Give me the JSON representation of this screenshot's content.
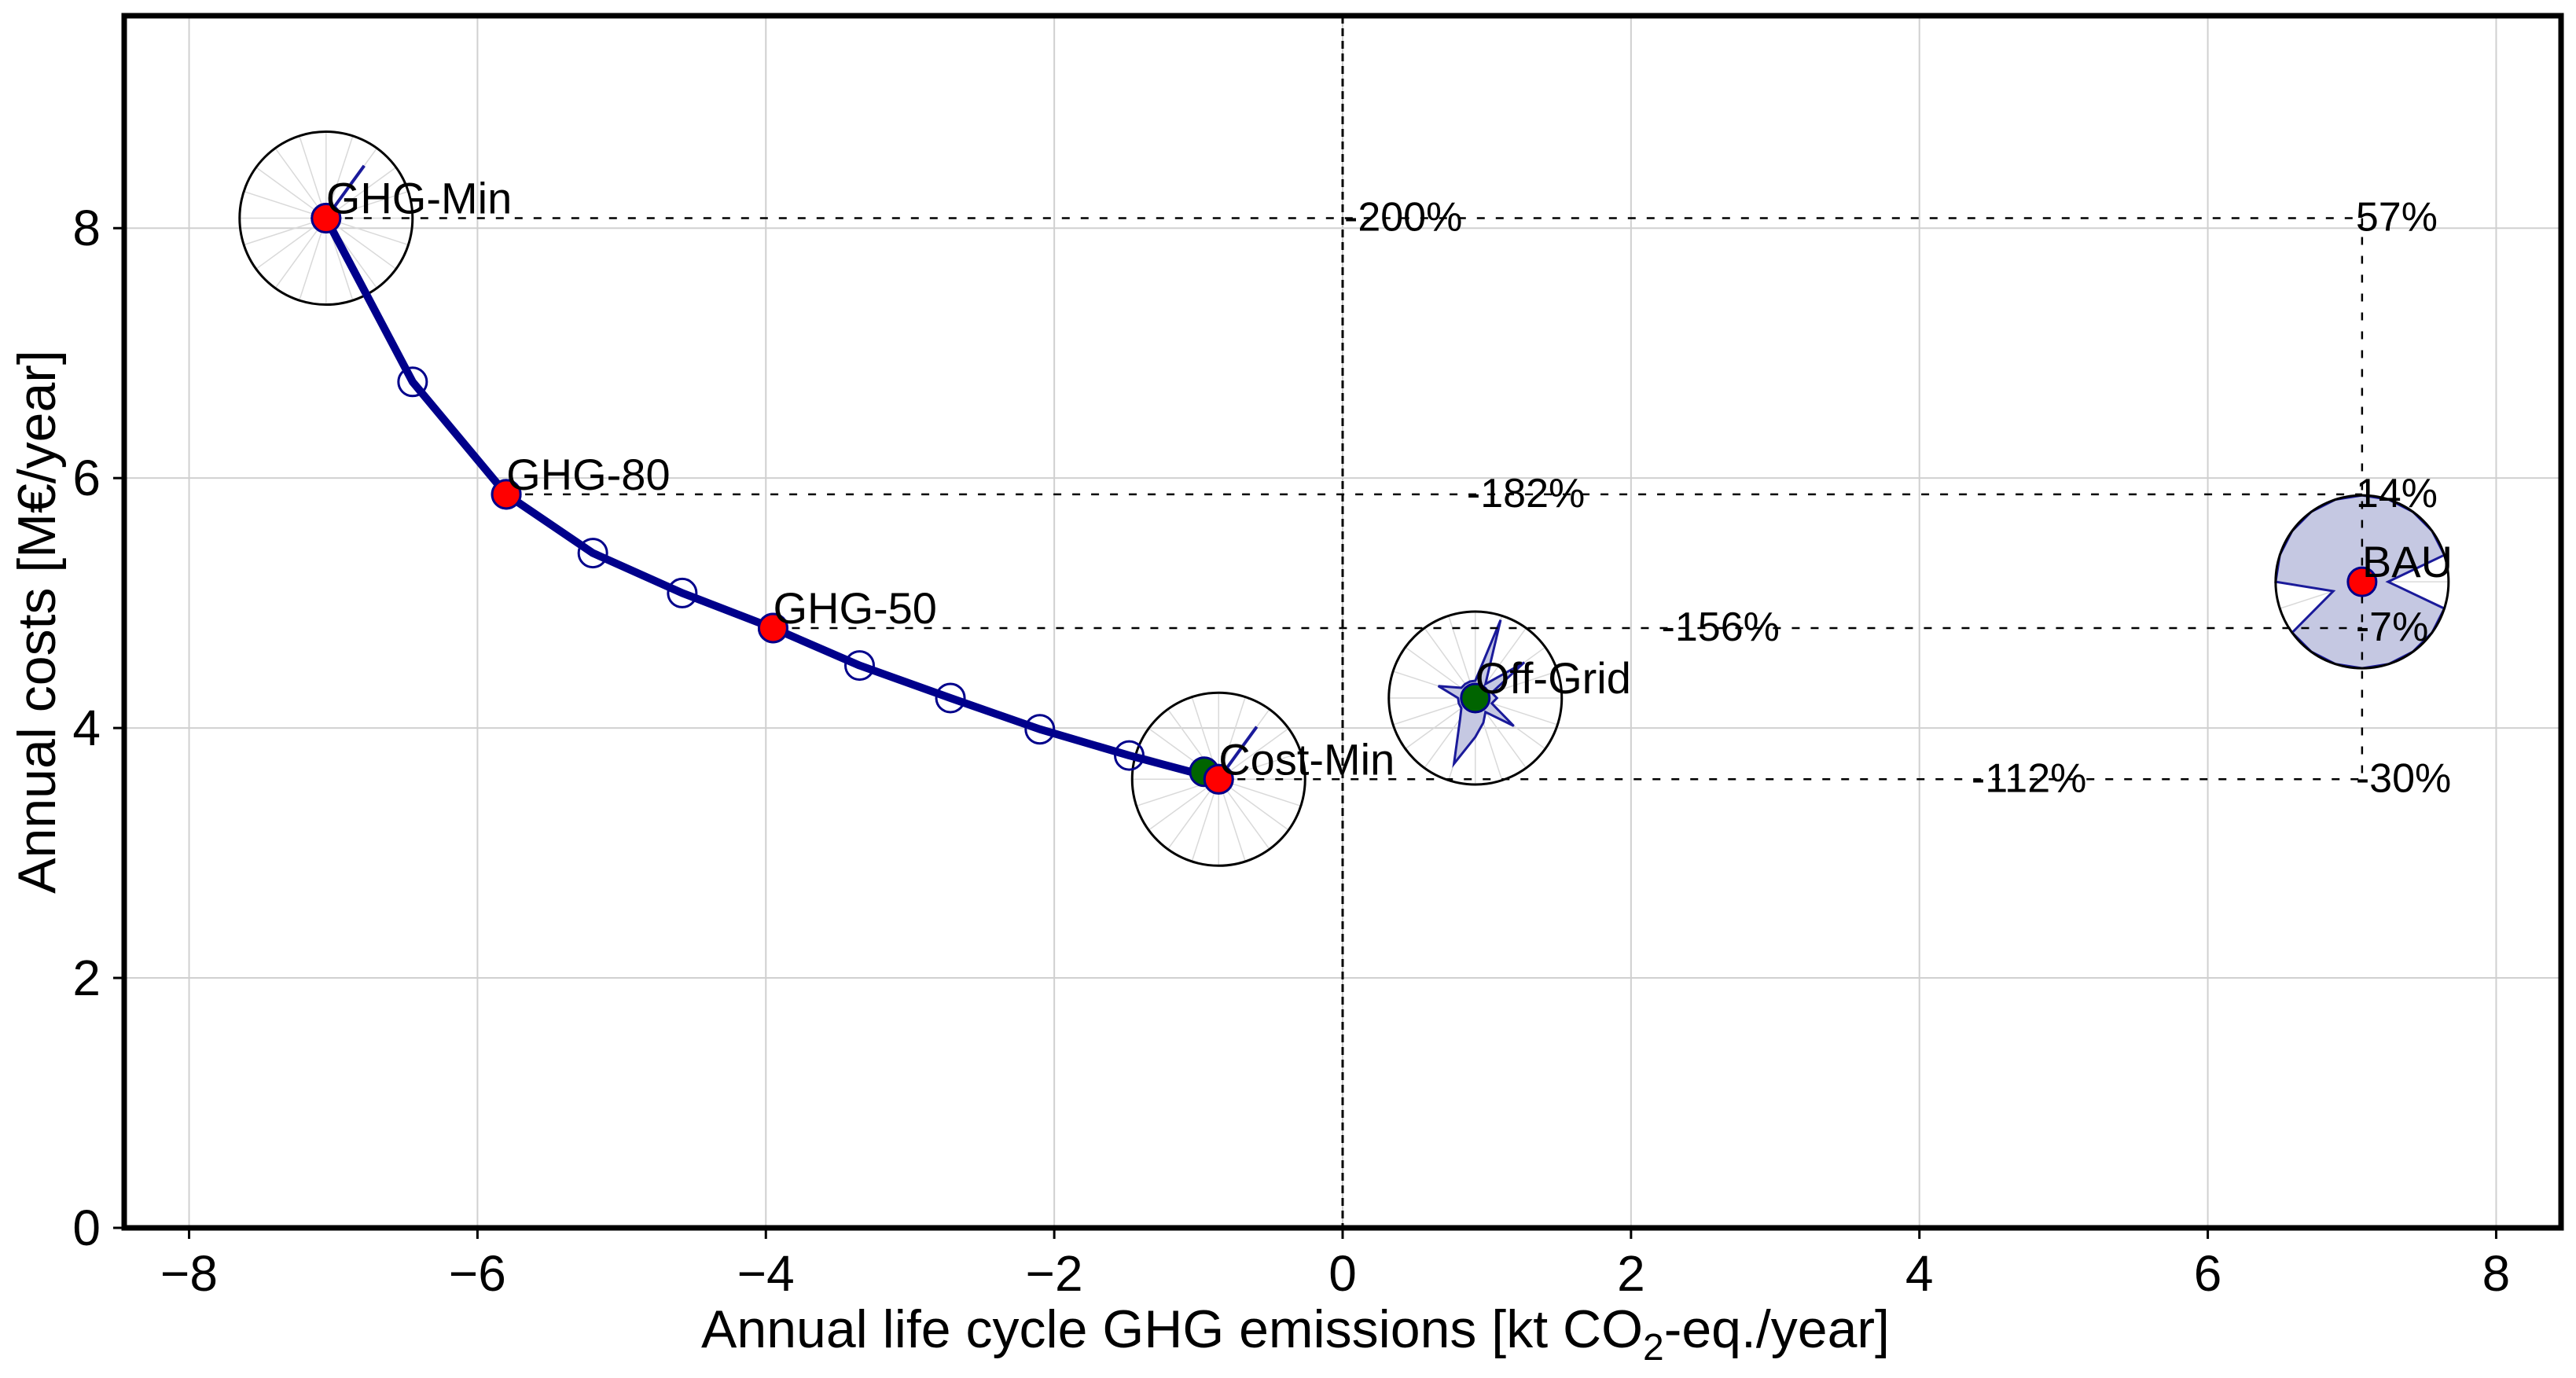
{
  "chart_data": {
    "type": "scatter",
    "title": "",
    "xlabel_parts": [
      "Annual life cycle GHG emissions [kt CO",
      "2",
      "-eq./year]"
    ],
    "ylabel": "Annual costs [M€/year]",
    "xlim": [
      -8.45,
      8.45
    ],
    "ylim": [
      0,
      9.7
    ],
    "x_ticks": [
      -8,
      -6,
      -4,
      -2,
      0,
      2,
      4,
      6,
      8
    ],
    "x_tick_labels": [
      "−8",
      "−6",
      "−4",
      "−2",
      "0",
      "2",
      "4",
      "6",
      "8"
    ],
    "y_ticks": [
      0,
      2,
      4,
      6,
      8
    ],
    "y_tick_labels": [
      "0",
      "2",
      "4",
      "6",
      "8"
    ],
    "grid": true,
    "colors": {
      "pareto": "#00008b",
      "named_point": "#ff0000",
      "offgrid_point": "#006400",
      "radar_fill": "#c5c8e2",
      "radar_line": "#1a1a9a",
      "grid": "#d0d0d0"
    },
    "pareto_front": {
      "x": [
        -7.05,
        -6.45,
        -5.8,
        -5.2,
        -4.58,
        -3.95,
        -3.35,
        -2.72,
        -2.1,
        -1.48,
        -0.86
      ],
      "y": [
        8.08,
        6.77,
        5.87,
        5.4,
        5.08,
        4.8,
        4.5,
        4.24,
        3.99,
        3.78,
        3.59
      ]
    },
    "named_points": [
      {
        "label": "GHG-Min",
        "x": -7.05,
        "y": 8.08,
        "color": "#ff0000"
      },
      {
        "label": "GHG-80",
        "x": -5.8,
        "y": 5.87,
        "color": "#ff0000"
      },
      {
        "label": "GHG-50",
        "x": -3.95,
        "y": 4.8,
        "color": "#ff0000"
      },
      {
        "label": "Cost-Min",
        "x": -0.86,
        "y": 3.59,
        "color": "#ff0000"
      },
      {
        "label": "Off-Grid",
        "x": 0.92,
        "y": 4.24,
        "color": "#006400"
      },
      {
        "label": "BAU",
        "x": 7.07,
        "y": 5.17,
        "color": "#ff0000"
      }
    ],
    "extra_point": {
      "x": -0.96,
      "y": 3.65,
      "color": "#006400"
    },
    "reference_lines": {
      "vertical_x": 0,
      "bau_x": 7.07
    },
    "relative_changes": [
      {
        "y": 8.08,
        "emissions_label": "-200%",
        "emissions_label_x": 0.0,
        "cost_label": "57%"
      },
      {
        "y": 5.87,
        "emissions_label": "-182%",
        "emissions_label_x": 0.85,
        "cost_label": "14%"
      },
      {
        "y": 4.8,
        "emissions_label": "-156%",
        "emissions_label_x": 2.2,
        "cost_label": "-7%"
      },
      {
        "y": 3.59,
        "emissions_label": "-112%",
        "emissions_label_x": 4.35,
        "cost_label": "-30%"
      }
    ],
    "radar_charts": [
      {
        "center": "GHG-Min",
        "values": [
          0,
          0,
          0.75,
          0,
          0,
          0,
          0,
          0,
          0,
          0,
          0,
          0,
          0,
          0,
          0,
          0,
          0,
          0,
          0,
          0
        ]
      },
      {
        "center": "Cost-Min",
        "values": [
          0,
          0,
          0.75,
          0,
          0,
          0,
          0,
          0,
          0,
          0,
          0,
          0,
          0,
          0,
          0,
          0,
          0,
          0,
          0,
          0
        ]
      },
      {
        "center": "Off-Grid",
        "values": [
          0.2,
          0.95,
          0.2,
          0.7,
          0.2,
          0.25,
          0.2,
          0.55,
          0.2,
          0.3,
          0.45,
          0.8,
          0.3,
          0.2,
          0.2,
          0.2,
          0.45,
          0.2,
          0.2,
          0.2
        ]
      },
      {
        "center": "BAU",
        "values": [
          1,
          1,
          1,
          1,
          1,
          0.3,
          1,
          1,
          1,
          1,
          1,
          1,
          1,
          1,
          0.35,
          1,
          1,
          1,
          1,
          1
        ]
      }
    ]
  }
}
